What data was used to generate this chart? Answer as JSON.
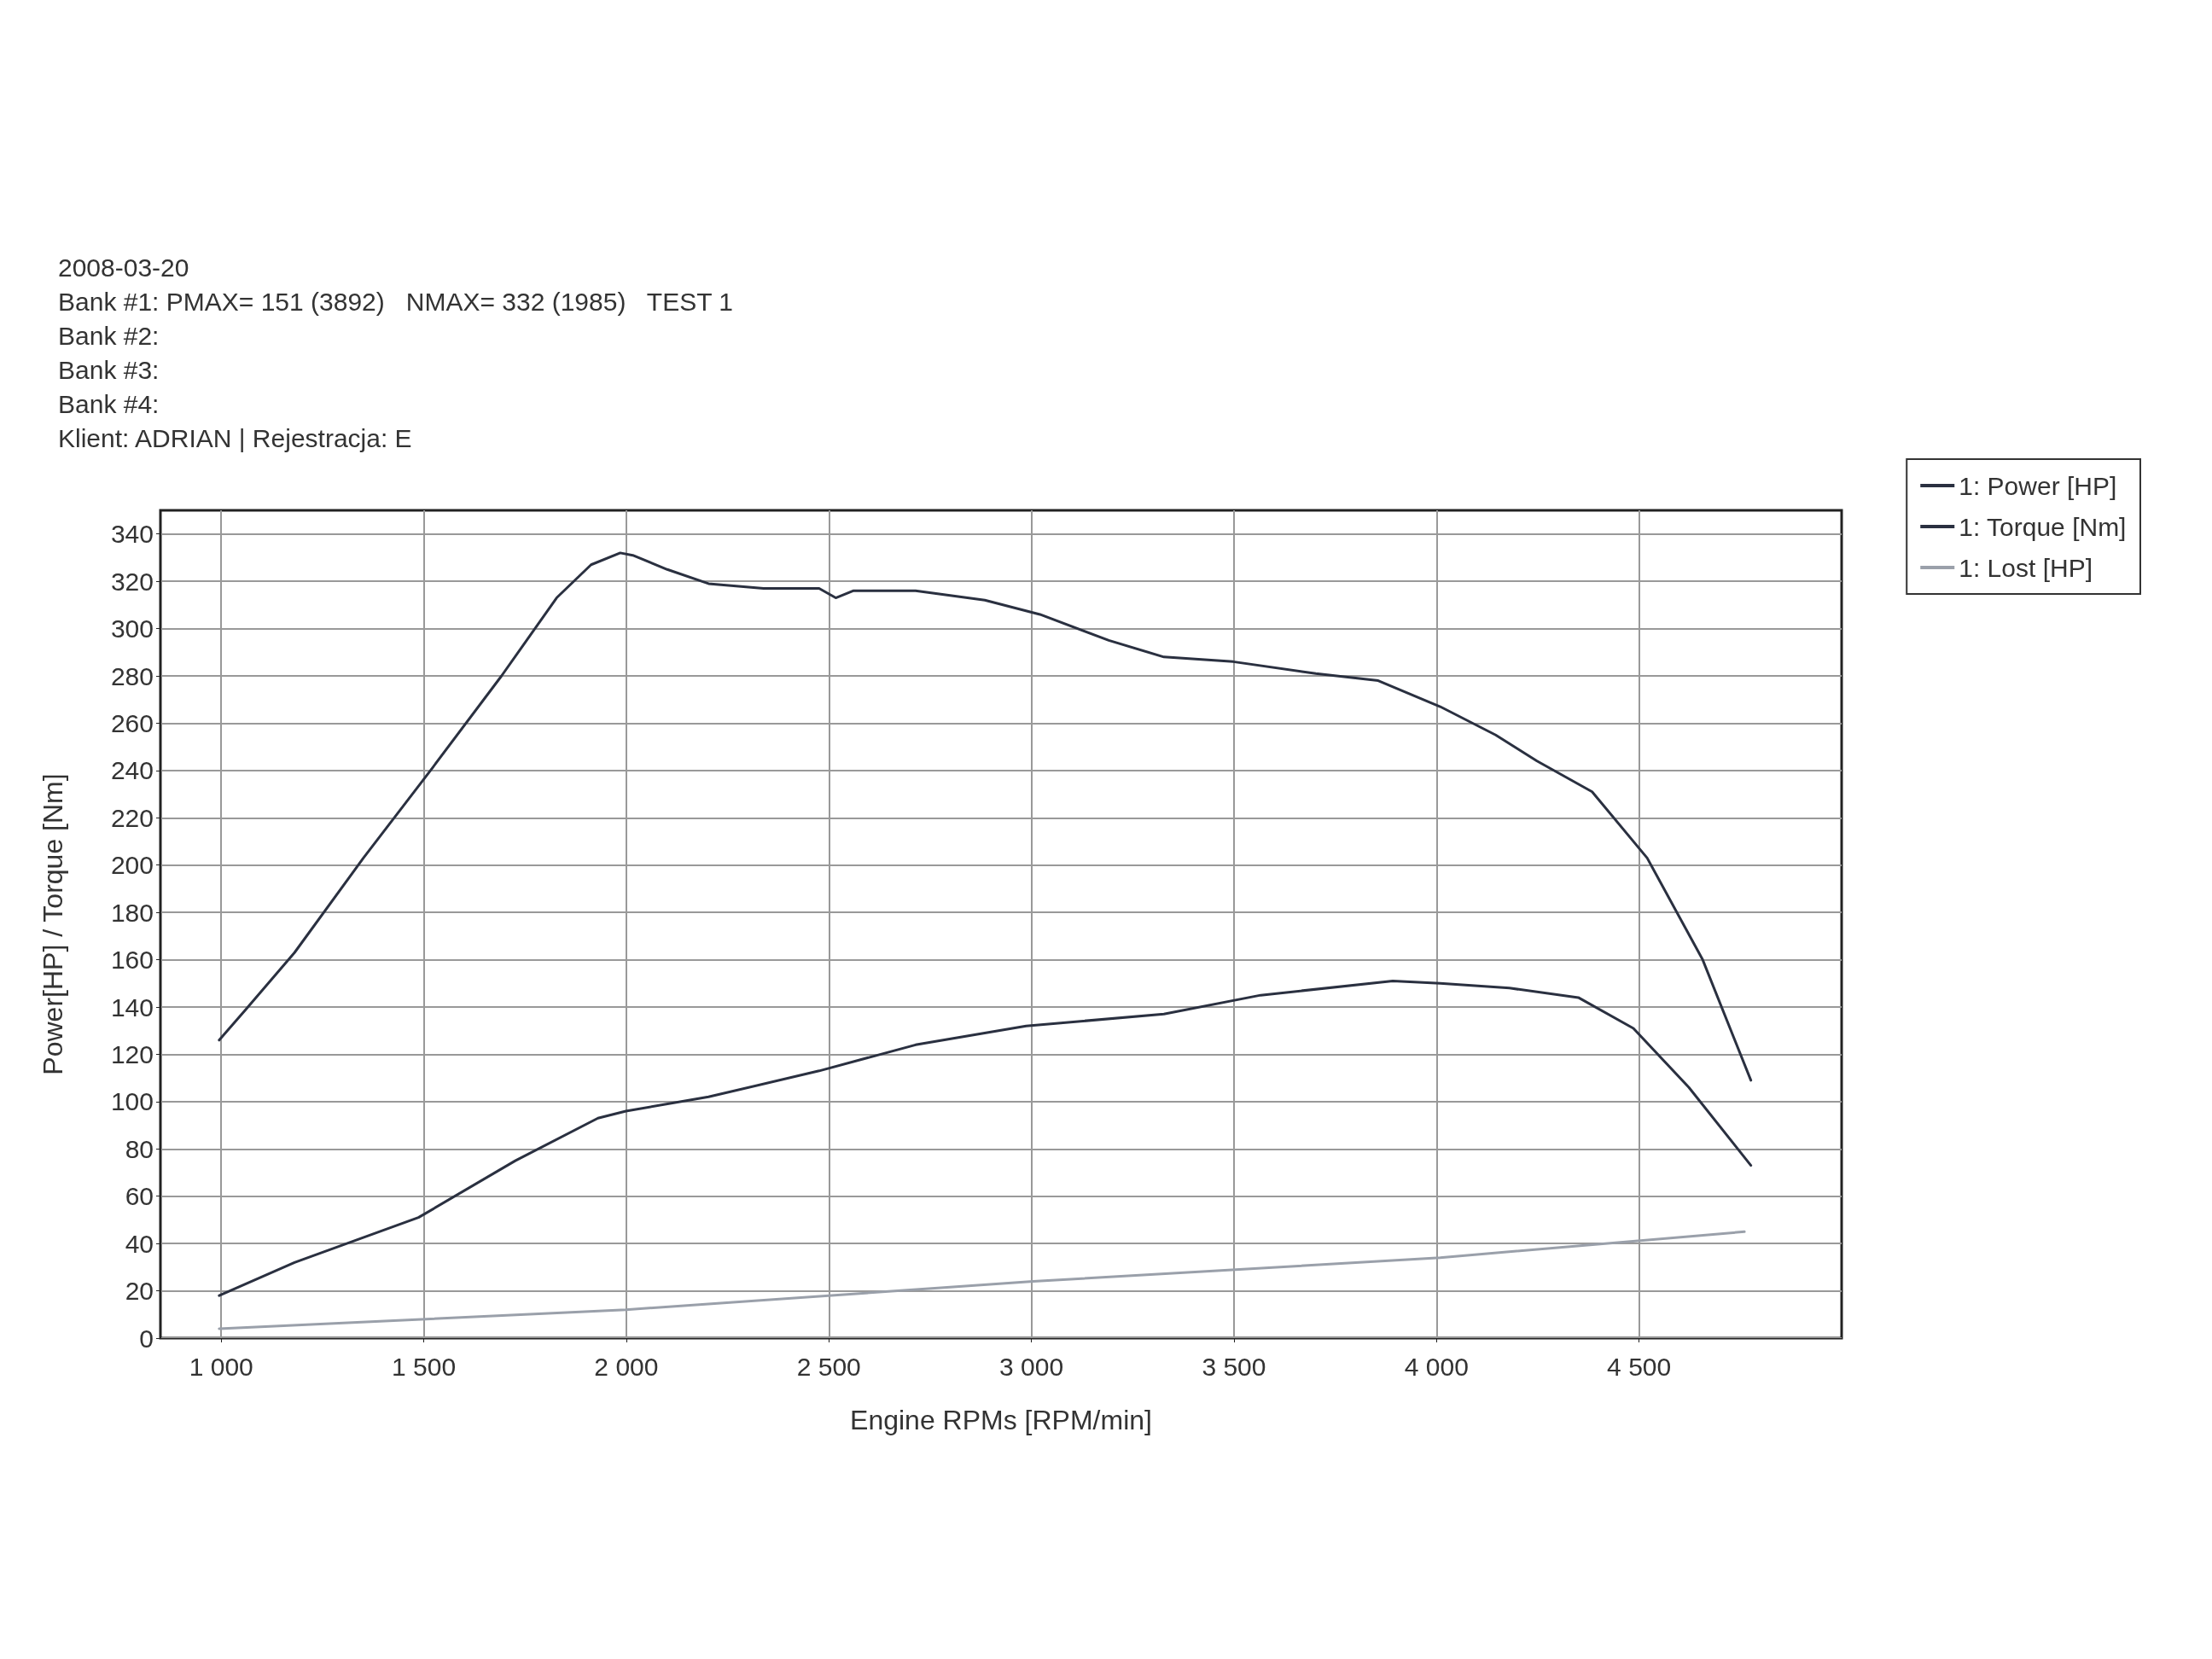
{
  "chart_data": {
    "type": "line",
    "xlabel": "Engine RPMs [RPM/min]",
    "ylabel": "Power[HP] / Torque [Nm]",
    "annotations": [
      "2008-03-20",
      "Bank #1: PMAX= 151 (3892)   NMAX= 332 (1985)   TEST 1",
      "Bank #2:",
      "Bank #3:",
      "Bank #4:",
      "Klient: ADRIAN | Rejestracja: E"
    ],
    "xlim": [
      850,
      5000
    ],
    "ylim": [
      0,
      350
    ],
    "xticks": [
      {
        "value": 1000,
        "label": "1 000"
      },
      {
        "value": 1500,
        "label": "1 500"
      },
      {
        "value": 2000,
        "label": "2 000"
      },
      {
        "value": 2500,
        "label": "2 500"
      },
      {
        "value": 3000,
        "label": "3 000"
      },
      {
        "value": 3500,
        "label": "3 500"
      },
      {
        "value": 4000,
        "label": "4 000"
      },
      {
        "value": 4500,
        "label": "4 500"
      }
    ],
    "yticks": [
      0,
      20,
      40,
      60,
      80,
      100,
      120,
      140,
      160,
      180,
      200,
      220,
      240,
      260,
      280,
      300,
      320,
      340
    ],
    "grid": true,
    "legend": "top right",
    "marker": "none",
    "line_style": "solid",
    "series": [
      {
        "name": "1: Power [HP]",
        "color": "#2a3040",
        "x": [
          995,
          1181,
          1487,
          1726,
          1930,
          1999,
          2203,
          2476,
          2714,
          2987,
          3327,
          3566,
          3892,
          4009,
          4180,
          4350,
          4486,
          4623,
          4776
        ],
        "values": [
          18,
          32,
          51,
          75,
          93,
          96,
          102,
          113,
          124,
          132,
          137,
          145,
          151,
          150,
          148,
          144,
          131,
          106,
          73
        ]
      },
      {
        "name": "1: Torque [Nm]",
        "color": "#2a3040",
        "x": [
          995,
          1061,
          1181,
          1351,
          1521,
          1692,
          1828,
          1913,
          1985,
          2016,
          2101,
          2203,
          2339,
          2476,
          2517,
          2561,
          2714,
          2885,
          3021,
          3191,
          3327,
          3498,
          3702,
          3856,
          4009,
          4146,
          4248,
          4384,
          4520,
          4657,
          4776
        ],
        "values": [
          126,
          139,
          163,
          203,
          241,
          280,
          313,
          327,
          332,
          331,
          325,
          319,
          317,
          317,
          313,
          316,
          316,
          312,
          306,
          295,
          288,
          286,
          281,
          278,
          267,
          255,
          244,
          231,
          203,
          160,
          109
        ]
      },
      {
        "name": "1: Lost [HP]",
        "color": "#9aa0aa",
        "x": [
          995,
          1999,
          3004,
          4009,
          4760
        ],
        "values": [
          4,
          12,
          24,
          34,
          45
        ]
      }
    ]
  }
}
